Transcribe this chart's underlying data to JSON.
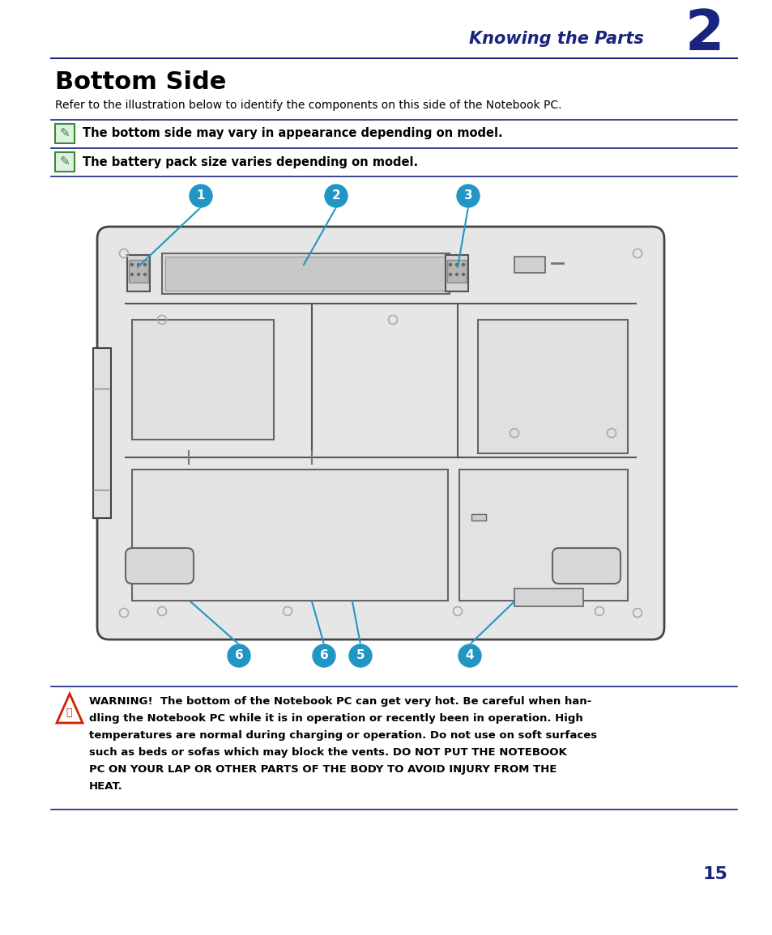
{
  "bg_color": "#ffffff",
  "header_text": "Knowing the Parts",
  "header_number": "2",
  "header_color": "#1a237e",
  "header_line_color": "#1a237e",
  "title": "Bottom Side",
  "title_color": "#000000",
  "subtitle": "Refer to the illustration below to identify the components on this side of the Notebook PC.",
  "note1": "The bottom side may vary in appearance depending on model.",
  "note2": "The battery pack size varies depending on model.",
  "note_color": "#000000",
  "note_line_color": "#1a237e",
  "callout_color": "#2196c4",
  "callout_text_color": "#ffffff",
  "warning_text_line1": "WARNING!  The bottom of the Notebook PC can get very hot. Be careful when han-",
  "warning_text_line2": "dling the Notebook PC while it is in operation or recently been in operation. High",
  "warning_text_line3": "temperatures are normal during charging or operation. Do not use on soft surfaces",
  "warning_text_line4": "such as beds or sofas which may block the vents. DO NOT PUT THE NOTEBOOK",
  "warning_text_line5": "PC ON YOUR LAP OR OTHER PARTS OF THE BODY TO AVOID INJURY FROM THE",
  "warning_text_line6": "HEAT.",
  "page_number": "15",
  "page_number_color": "#1a237e"
}
